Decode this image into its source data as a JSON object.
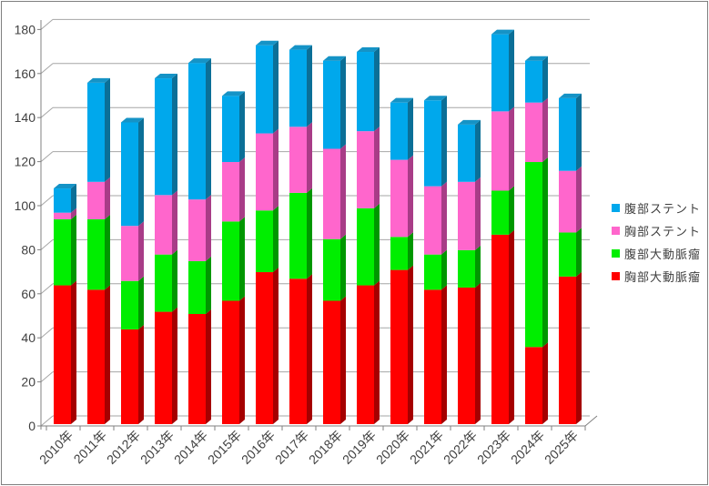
{
  "window": {
    "background": "#FFFFFF",
    "border_color": "#7F7F7F"
  },
  "chart_data": {
    "type": "bar",
    "stacked": true,
    "three_d": true,
    "title": "",
    "xlabel": "",
    "ylabel": "",
    "categories": [
      "2010年",
      "2011年",
      "2012年",
      "2013年",
      "2014年",
      "2015年",
      "2016年",
      "2017年",
      "2018年",
      "2019年",
      "2020年",
      "2021年",
      "2022年",
      "2023年",
      "2024年",
      "2025年"
    ],
    "series": [
      {
        "name": "胸部大動脈瘤",
        "color": "#FF0000",
        "side": "#A50000",
        "top": "#C40000",
        "values": [
          63,
          61,
          43,
          51,
          50,
          56,
          69,
          66,
          56,
          63,
          70,
          61,
          62,
          86,
          35,
          67
        ]
      },
      {
        "name": "腹部大動脈瘤",
        "color": "#00EE00",
        "side": "#009700",
        "top": "#00BC00",
        "values": [
          30,
          32,
          22,
          26,
          24,
          36,
          28,
          39,
          28,
          35,
          15,
          16,
          17,
          20,
          84,
          20
        ]
      },
      {
        "name": "胸部ステント",
        "color": "#FF66CC",
        "side": "#A83C87",
        "top": "#D156A9",
        "values": [
          3,
          17,
          25,
          27,
          28,
          27,
          35,
          30,
          41,
          35,
          35,
          31,
          31,
          36,
          27,
          28
        ]
      },
      {
        "name": "腹部ステント",
        "color": "#00A8EC",
        "side": "#0B6F97",
        "top": "#1593C6",
        "values": [
          11,
          45,
          47,
          53,
          62,
          30,
          40,
          35,
          40,
          36,
          26,
          39,
          26,
          35,
          19,
          33
        ]
      }
    ],
    "totals": [
      107,
      155,
      137,
      157,
      164,
      149,
      172,
      170,
      165,
      169,
      146,
      147,
      136,
      177,
      165,
      148
    ],
    "y_axis": {
      "min": 0,
      "max": 180,
      "step": 20,
      "tick_labels": [
        "0",
        "20",
        "40",
        "60",
        "80",
        "100",
        "120",
        "140",
        "160",
        "180"
      ]
    },
    "legend": {
      "position": "right",
      "items": [
        {
          "label": "腹部ステント",
          "color": "#00A8EC"
        },
        {
          "label": "胸部ステント",
          "color": "#FF66CC"
        },
        {
          "label": "腹部大動脈瘤",
          "color": "#00EE00"
        },
        {
          "label": "胸部大動脈瘤",
          "color": "#FF0000"
        }
      ]
    },
    "grid": true,
    "style": {
      "gridline_color": "#A6A6A6",
      "axis_color": "#808080",
      "label_color": "#3F3F3F",
      "x_label_rotation_deg": -45
    }
  }
}
